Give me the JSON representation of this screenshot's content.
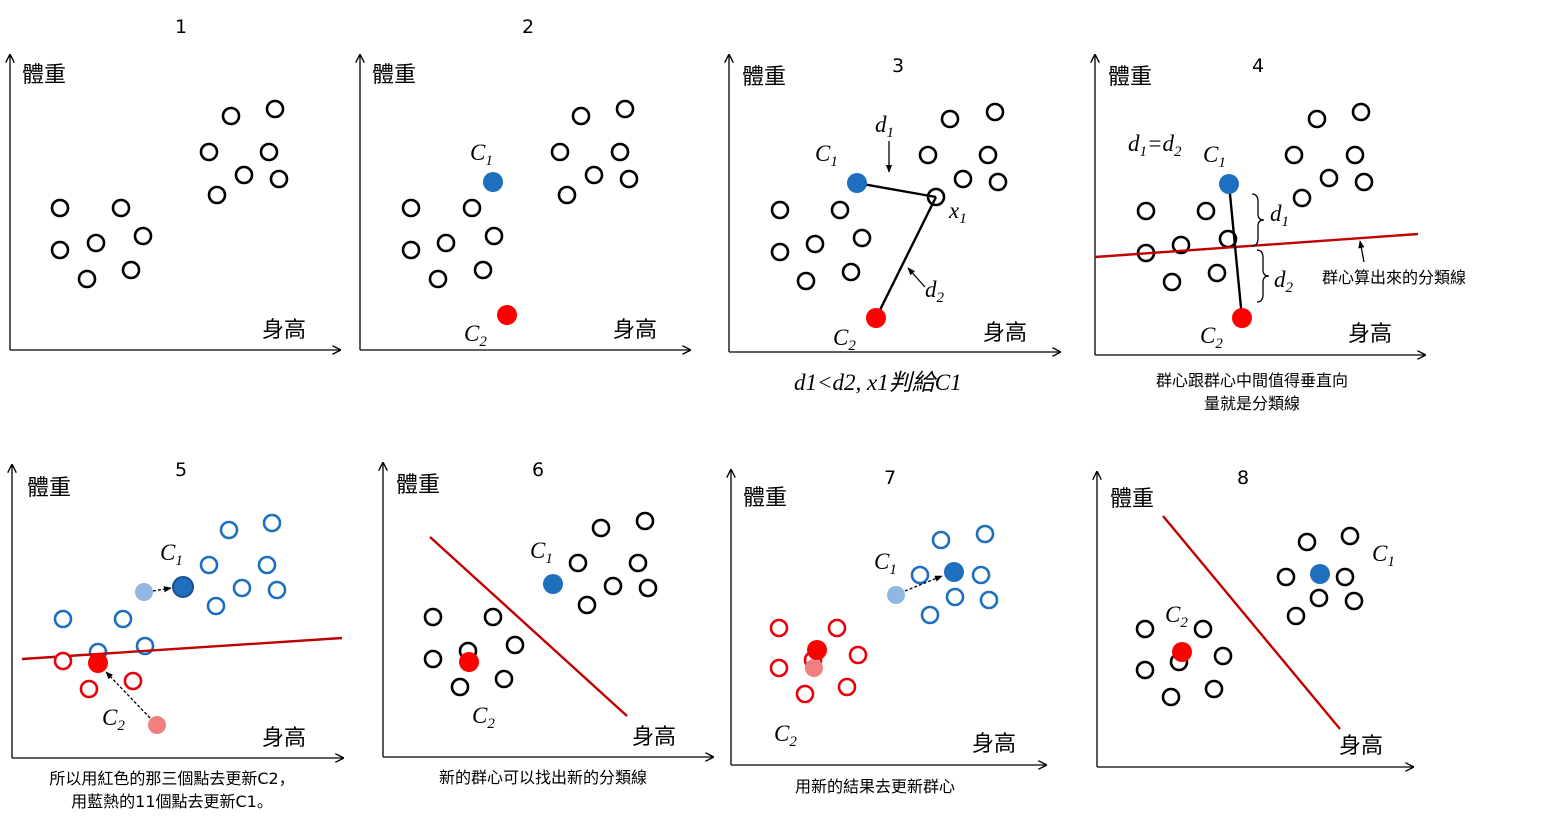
{
  "axes": {
    "y_label": "體重",
    "x_label": "身高"
  },
  "panels": [
    {
      "id": "1",
      "number": "1"
    },
    {
      "id": "2",
      "number": "2",
      "c1": "C",
      "c1_sub": "1",
      "c2": "C",
      "c2_sub": "2"
    },
    {
      "id": "3",
      "number": "3",
      "c1": "C",
      "c1_sub": "1",
      "c2": "C",
      "c2_sub": "2",
      "d1": "d",
      "d1_sub": "1",
      "d2": "d",
      "d2_sub": "2",
      "x1": "x",
      "x1_sub": "1",
      "caption": "d1<d2, x1判給C1"
    },
    {
      "id": "4",
      "number": "4",
      "c1": "C",
      "c1_sub": "1",
      "c2": "C",
      "c2_sub": "2",
      "eq_left": "d",
      "eq_left_sub": "1",
      "eq_mid": "=",
      "eq_right": "d",
      "eq_right_sub": "2",
      "d1": "d",
      "d1_sub": "1",
      "d2": "d",
      "d2_sub": "2",
      "line_note": "群心算出來的分類線",
      "caption_lines": [
        "群心跟群心中間值得垂直向",
        "量就是分類線"
      ]
    },
    {
      "id": "5",
      "number": "5",
      "c1": "C",
      "c1_sub": "1",
      "c2": "C",
      "c2_sub": "2",
      "caption_lines": [
        "所以用紅色的那三個點去更新C2，",
        "用藍熱的11個點去更新C1。"
      ]
    },
    {
      "id": "6",
      "number": "6",
      "c1": "C",
      "c1_sub": "1",
      "c2": "C",
      "c2_sub": "2",
      "caption": "新的群心可以找出新的分類線"
    },
    {
      "id": "7",
      "number": "7",
      "c1": "C",
      "c1_sub": "1",
      "c2": "C",
      "c2_sub": "2",
      "caption": "用新的結果去更新群心"
    },
    {
      "id": "8",
      "number": "8",
      "c1": "C",
      "c1_sub": "1",
      "c2": "C",
      "c2_sub": "2"
    }
  ],
  "colors": {
    "point": "#000000",
    "centroid_1": "#1f6fbf",
    "centroid_2": "#ff0000",
    "old_centroid_1": "#8fb8e0",
    "old_centroid_2": "#f08080",
    "cluster_1_points": "#1f6fbf",
    "cluster_2_points": "#e8000b",
    "boundary_line": "#c00000"
  }
}
